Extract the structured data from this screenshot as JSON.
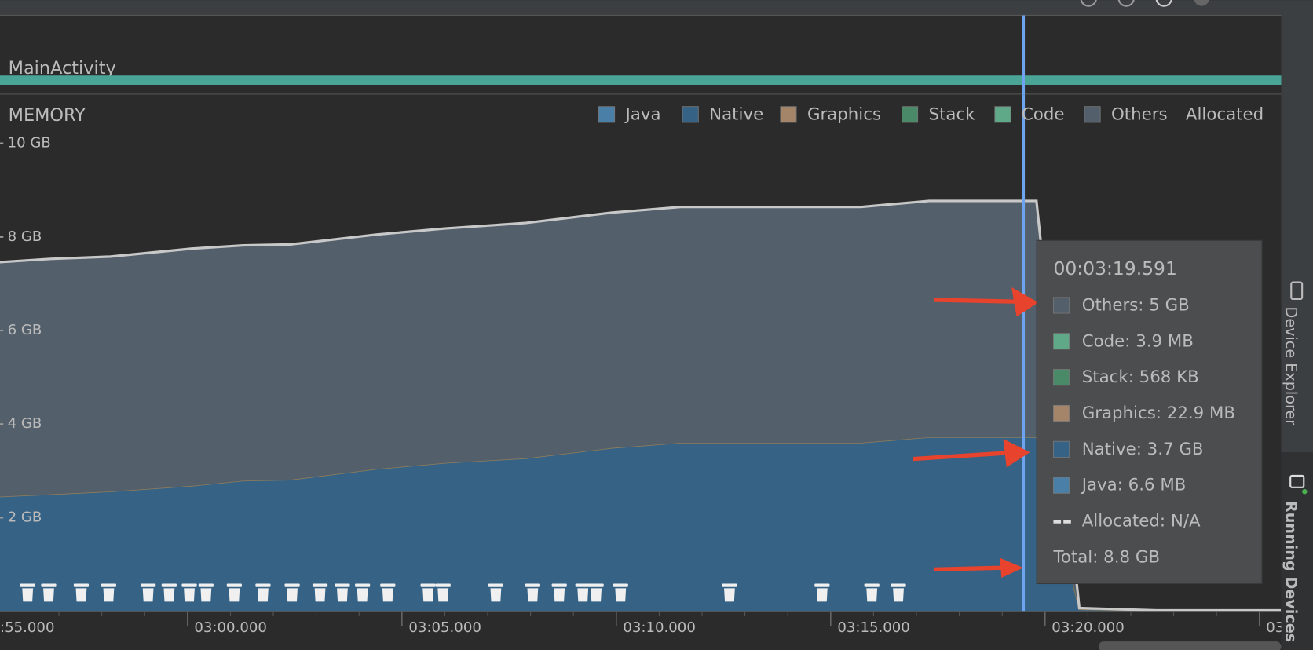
{
  "activity": "MainActivity",
  "side_panel": [
    "Device Explorer",
    "Running Devices"
  ],
  "chart_data": {
    "type": "area",
    "title": "MEMORY",
    "legend": [
      {
        "name": "Java",
        "color": "#4a7fa8"
      },
      {
        "name": "Native",
        "color": "#356285"
      },
      {
        "name": "Graphics",
        "color": "#a4856a"
      },
      {
        "name": "Stack",
        "color": "#4a8a68"
      },
      {
        "name": "Code",
        "color": "#5fa888"
      },
      {
        "name": "Others",
        "color": "#535f6a"
      },
      {
        "name": "Allocated"
      }
    ],
    "x": [
      175.6,
      176.8,
      178.2,
      180.1,
      181.3,
      182.4,
      184.4,
      186.0,
      187.9,
      189.9,
      191.5,
      195.7,
      197.3,
      199.8,
      200.8,
      202.6,
      205.5
    ],
    "series": [
      {
        "name": "Native",
        "color": "#356285",
        "line_color": "#8f7d5a",
        "values": [
          2.45,
          2.5,
          2.56,
          2.68,
          2.79,
          2.81,
          3.04,
          3.17,
          3.27,
          3.49,
          3.6,
          3.6,
          3.72,
          3.72,
          0.04,
          0.01,
          0.01
        ]
      },
      {
        "name": "Others",
        "color": "#535f6a",
        "line_color": "#c8c8c8",
        "values": [
          5.01,
          5.03,
          5.02,
          5.07,
          5.03,
          5.03,
          5.01,
          5.01,
          5.03,
          5.03,
          5.04,
          5.04,
          5.05,
          5.05,
          0.03,
          0.01,
          0.01
        ]
      }
    ],
    "xlim": [
      175.625,
      205.508
    ],
    "xticks": [
      {
        "value": 175,
        "label": ":55.000"
      },
      {
        "value": 180,
        "label": "03:00.000"
      },
      {
        "value": 185,
        "label": "03:05.000"
      },
      {
        "value": 190,
        "label": "03:10.000"
      },
      {
        "value": 195,
        "label": "03:15.000"
      },
      {
        "value": 200,
        "label": "03:20.000"
      },
      {
        "value": 205,
        "label": "03:"
      }
    ],
    "ylim": [
      0,
      10
    ],
    "yticks": [
      {
        "value": 2,
        "label": "2 GB"
      },
      {
        "value": 4,
        "label": "4 GB"
      },
      {
        "value": 6,
        "label": "6 GB"
      },
      {
        "value": 8,
        "label": "8 GB"
      },
      {
        "value": 10,
        "label": "10 GB"
      }
    ],
    "gc_events": [
      176.27,
      176.76,
      177.52,
      178.16,
      179.08,
      179.57,
      180.04,
      180.43,
      181.09,
      181.76,
      182.44,
      183.09,
      183.61,
      184.08,
      184.67,
      185.61,
      185.96,
      187.19,
      188.05,
      188.67,
      189.22,
      189.53,
      190.1,
      192.64,
      194.8,
      195.96,
      196.58
    ],
    "selection": 199.5,
    "tooltip": {
      "time": "00:03:19.591",
      "rows": [
        {
          "text": "Others: 5 GB",
          "color": "#535f6a"
        },
        {
          "text": "Code: 3.9 MB",
          "color": "#5fa888"
        },
        {
          "text": "Stack: 568 KB",
          "color": "#4a8a68"
        },
        {
          "text": "Graphics: 22.9 MB",
          "color": "#a4856a"
        },
        {
          "text": "Native: 3.7 GB",
          "color": "#356285"
        },
        {
          "text": "Java: 6.6 MB",
          "color": "#4a7fa8"
        },
        {
          "text": "Allocated: N/A",
          "dashed": true
        },
        {
          "text": "Total: 8.8 GB"
        }
      ]
    }
  }
}
